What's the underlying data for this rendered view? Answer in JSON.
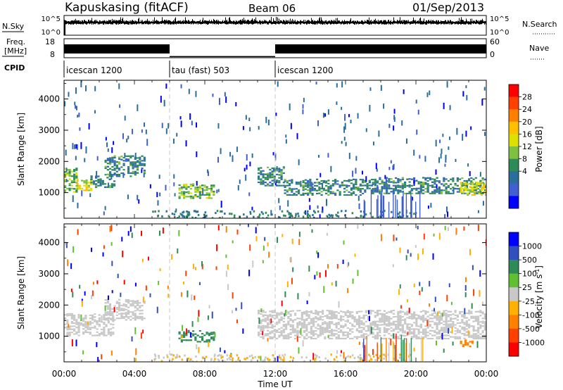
{
  "header": {
    "station": "Kapuskasing (fitACF)",
    "beam": "Beam 06",
    "date": "01/Sep/2013"
  },
  "status_panels": {
    "nsky_label": "N.Sky",
    "nsky_ticks": [
      "10^5",
      "10^0"
    ],
    "nsearch_label": "N.Search",
    "nsearch_ticks": [
      "10^5",
      "10^0"
    ],
    "freq_label_line1": "Freq.",
    "freq_label_line2": "[MHz]",
    "freq_ticks": [
      "18",
      "8"
    ],
    "nave_label": "Nave",
    "nave_ticks": [
      "60",
      "0"
    ],
    "cpid_label": "CPID",
    "cpid_segments": [
      {
        "label": "icescan 1200",
        "start_h": 0,
        "end_h": 6
      },
      {
        "label": "tau (fast) 503",
        "start_h": 6,
        "end_h": 12
      },
      {
        "label": "icescan 1200",
        "start_h": 12,
        "end_h": 24
      }
    ],
    "freq_mhz_by_segment": [
      {
        "start_h": 0,
        "end_h": 6,
        "freq": 12.5
      },
      {
        "start_h": 6,
        "end_h": 12,
        "freq": 8.6
      },
      {
        "start_h": 12,
        "end_h": 24,
        "freq": 12.5
      }
    ]
  },
  "xaxis": {
    "label": "Time UT",
    "ticks": [
      "00:00",
      "04:00",
      "08:00",
      "12:00",
      "16:00",
      "20:00",
      "00:00"
    ]
  },
  "power_colorbar": {
    "label": "Power [dB]",
    "ticks": [
      "28",
      "24",
      "20",
      "16",
      "12",
      "8",
      "4"
    ],
    "colors": [
      "#ff0000",
      "#ff4000",
      "#ff8000",
      "#ffc000",
      "#e0e000",
      "#80c040",
      "#2e8b57",
      "#2a6e9e",
      "#4060d0",
      "#0000ff"
    ]
  },
  "velocity_colorbar": {
    "label": "Velocity [m s-1]",
    "ticks": [
      "1000",
      "500",
      "100",
      "25",
      "-25",
      "-100",
      "-500",
      "-1000"
    ],
    "colors": [
      "#0000ff",
      "#3050c0",
      "#2e8b57",
      "#60c030",
      "#c8c8c8",
      "#ffb000",
      "#ff8000",
      "#ff4000",
      "#ff0000"
    ]
  },
  "chart_data": [
    {
      "type": "heatmap",
      "title": "",
      "xlabel": "Time UT",
      "ylabel": "Slant Range [km]",
      "xlim": [
        0,
        24
      ],
      "ylim": [
        180,
        4600
      ],
      "yticks": [
        1000,
        2000,
        3000,
        4000
      ],
      "colorbar_label": "Power [dB]",
      "bands": [
        {
          "x0": 0.0,
          "x1": 0.7,
          "r0": 1000,
          "r1": 1750,
          "value": 12
        },
        {
          "x0": 0.7,
          "x1": 1.5,
          "r0": 1050,
          "r1": 1400,
          "value": 16
        },
        {
          "x0": 1.5,
          "x1": 2.8,
          "r0": 1150,
          "r1": 1500,
          "value": 8
        },
        {
          "x0": 2.3,
          "x1": 4.6,
          "r0": 1500,
          "r1": 2150,
          "value": 8
        },
        {
          "x0": 6.5,
          "x1": 8.5,
          "r0": 800,
          "r1": 1250,
          "value": 12
        },
        {
          "x0": 11.0,
          "x1": 12.5,
          "r0": 1200,
          "r1": 1800,
          "value": 8
        },
        {
          "x0": 12.5,
          "x1": 17.5,
          "r0": 900,
          "r1": 1400,
          "value": 8
        },
        {
          "x0": 17.5,
          "x1": 24.0,
          "r0": 950,
          "r1": 1450,
          "value": 8
        },
        {
          "x0": 22.5,
          "x1": 24.0,
          "r0": 900,
          "r1": 1300,
          "value": 16
        }
      ]
    },
    {
      "type": "heatmap",
      "title": "",
      "xlabel": "Time UT",
      "ylabel": "Slant Range [km]",
      "xlim": [
        0,
        24
      ],
      "ylim": [
        180,
        4600
      ],
      "yticks": [
        1000,
        2000,
        3000,
        4000
      ],
      "colorbar_label": "Velocity [m s-1]",
      "bands": [
        {
          "x0": 0.0,
          "x1": 2.8,
          "r0": 1000,
          "r1": 1700,
          "value": 0
        },
        {
          "x0": 2.3,
          "x1": 4.6,
          "r0": 1500,
          "r1": 2150,
          "value": 0
        },
        {
          "x0": 6.5,
          "x1": 8.5,
          "r0": 800,
          "r1": 1150,
          "value": 60
        },
        {
          "x0": 11.0,
          "x1": 24.0,
          "r0": 900,
          "r1": 1800,
          "value": 0
        },
        {
          "x0": 22.5,
          "x1": 23.2,
          "r0": 650,
          "r1": 850,
          "value": -300
        }
      ]
    }
  ]
}
